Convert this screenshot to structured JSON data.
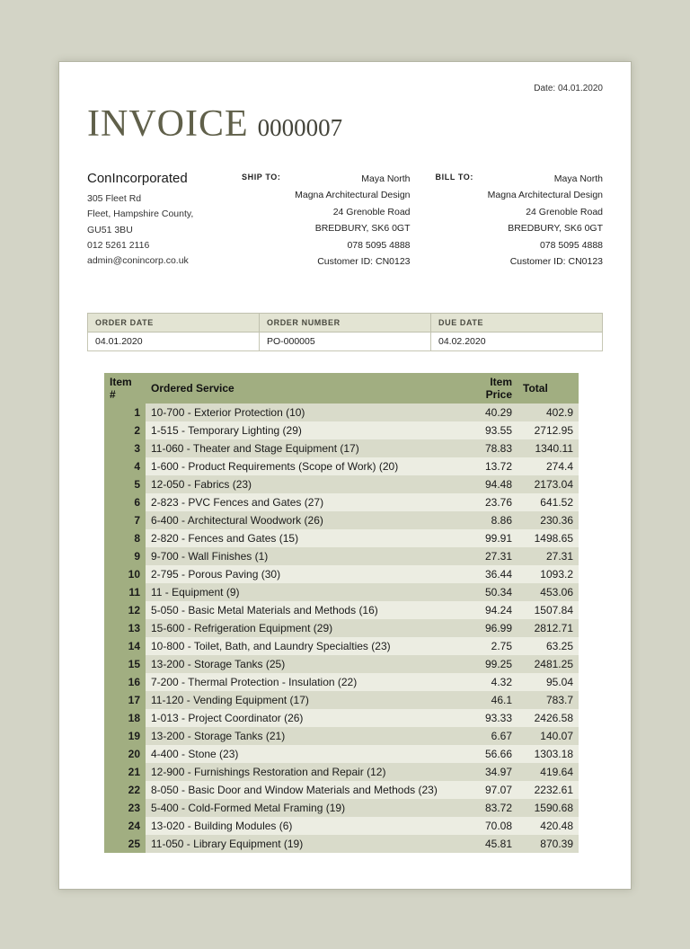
{
  "colors": {
    "accent_olive": "#a1ae81",
    "row_shaded": "#d9dbca",
    "row_light": "#ecede2",
    "title_color": "#60604a",
    "page_background": "#d3d4c6",
    "order_header_bg": "#e3e4d3"
  },
  "header": {
    "date": "Date: 04.01.2020",
    "title": "INVOICE",
    "number": "0000007"
  },
  "company": {
    "name": "ConIncorporated",
    "lines": [
      "305 Fleet Rd",
      "Fleet, Hampshire County,",
      "GU51 3BU",
      "012 5261 2116",
      "admin@conincorp.co.uk"
    ]
  },
  "ship_to": {
    "label": "SHIP TO:",
    "lines": [
      "Maya North",
      "Magna Architectural Design",
      "24 Grenoble Road",
      "BREDBURY, SK6 0GT",
      "078 5095 4888",
      "Customer ID: CN0123"
    ]
  },
  "bill_to": {
    "label": "BILL TO:",
    "lines": [
      "Maya North",
      "Magna Architectural Design",
      "24 Grenoble Road",
      "BREDBURY, SK6 0GT",
      "078 5095 4888",
      "Customer ID: CN0123"
    ]
  },
  "order_info": {
    "headers": [
      "ORDER DATE",
      "ORDER NUMBER",
      "DUE DATE"
    ],
    "values": [
      "04.01.2020",
      "PO-000005",
      "04.02.2020"
    ]
  },
  "items_table": {
    "headers": [
      "Item #",
      "Ordered Service",
      "Item Price",
      "Total"
    ],
    "rows": [
      [
        "1",
        "10-700 - Exterior Protection (10)",
        "40.29",
        "402.9"
      ],
      [
        "2",
        "1-515 - Temporary Lighting (29)",
        "93.55",
        "2712.95"
      ],
      [
        "3",
        "11-060 - Theater and Stage Equipment (17)",
        "78.83",
        "1340.11"
      ],
      [
        "4",
        "1-600 - Product Requirements (Scope of Work) (20)",
        "13.72",
        "274.4"
      ],
      [
        "5",
        "12-050 - Fabrics (23)",
        "94.48",
        "2173.04"
      ],
      [
        "6",
        "2-823 - PVC Fences and Gates (27)",
        "23.76",
        "641.52"
      ],
      [
        "7",
        "6-400 - Architectural Woodwork (26)",
        "8.86",
        "230.36"
      ],
      [
        "8",
        "2-820 - Fences and Gates (15)",
        "99.91",
        "1498.65"
      ],
      [
        "9",
        "9-700 - Wall Finishes (1)",
        "27.31",
        "27.31"
      ],
      [
        "10",
        "2-795 - Porous Paving (30)",
        "36.44",
        "1093.2"
      ],
      [
        "11",
        "11 - Equipment (9)",
        "50.34",
        "453.06"
      ],
      [
        "12",
        "5-050 - Basic Metal Materials and Methods (16)",
        "94.24",
        "1507.84"
      ],
      [
        "13",
        "15-600 - Refrigeration Equipment (29)",
        "96.99",
        "2812.71"
      ],
      [
        "14",
        "10-800 - Toilet, Bath, and Laundry Specialties (23)",
        "2.75",
        "63.25"
      ],
      [
        "15",
        "13-200 - Storage Tanks (25)",
        "99.25",
        "2481.25"
      ],
      [
        "16",
        "7-200 - Thermal Protection - Insulation (22)",
        "4.32",
        "95.04"
      ],
      [
        "17",
        "11-120 - Vending Equipment (17)",
        "46.1",
        "783.7"
      ],
      [
        "18",
        "1-013 - Project Coordinator (26)",
        "93.33",
        "2426.58"
      ],
      [
        "19",
        "13-200 - Storage Tanks (21)",
        "6.67",
        "140.07"
      ],
      [
        "20",
        "4-400 - Stone (23)",
        "56.66",
        "1303.18"
      ],
      [
        "21",
        "12-900 - Furnishings Restoration and Repair (12)",
        "34.97",
        "419.64"
      ],
      [
        "22",
        "8-050 - Basic Door and Window Materials and Methods (23)",
        "97.07",
        "2232.61"
      ],
      [
        "23",
        "5-400 - Cold-Formed Metal Framing (19)",
        "83.72",
        "1590.68"
      ],
      [
        "24",
        "13-020 - Building Modules (6)",
        "70.08",
        "420.48"
      ],
      [
        "25",
        "11-050 - Library Equipment (19)",
        "45.81",
        "870.39"
      ]
    ]
  }
}
